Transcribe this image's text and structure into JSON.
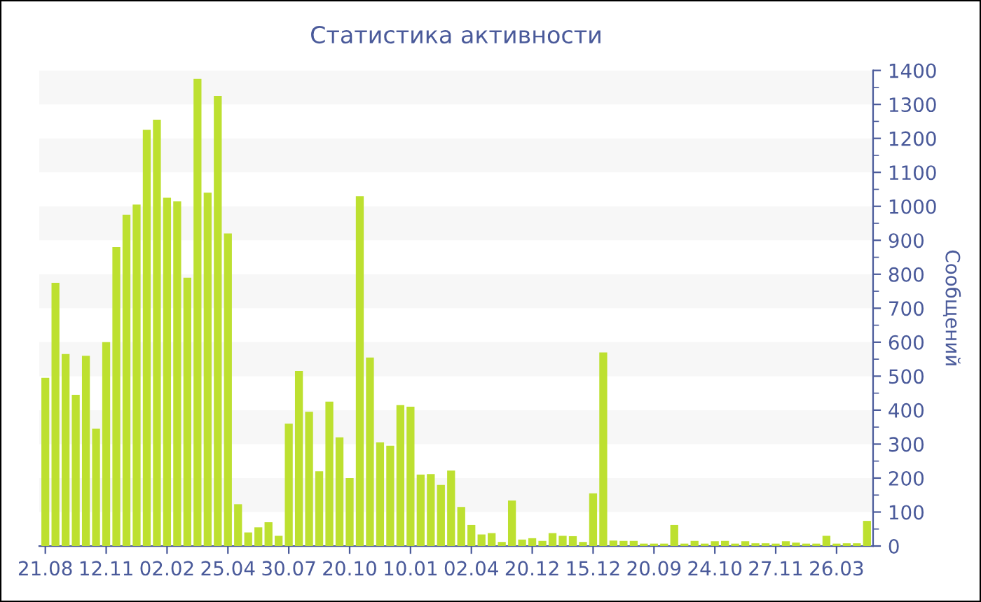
{
  "chart_data": {
    "type": "bar",
    "title": "Статистика активности",
    "ylabel": "Сообщений",
    "categories": [
      "21.08",
      null,
      null,
      null,
      null,
      null,
      "12.11",
      null,
      null,
      null,
      null,
      null,
      "02.02",
      null,
      null,
      null,
      null,
      null,
      "25.04",
      null,
      null,
      null,
      null,
      null,
      "30.07",
      null,
      null,
      null,
      null,
      null,
      "20.10",
      null,
      null,
      null,
      null,
      null,
      "10.01",
      null,
      null,
      null,
      null,
      null,
      "02.04",
      null,
      null,
      null,
      null,
      null,
      "20.12",
      null,
      null,
      null,
      null,
      null,
      "15.12",
      null,
      null,
      null,
      null,
      null,
      "20.09",
      null,
      null,
      null,
      null,
      null,
      "24.10",
      null,
      null,
      null,
      null,
      null,
      "27.11",
      null,
      null,
      null,
      null,
      null,
      "26.03",
      null,
      null,
      null
    ],
    "values": [
      495,
      775,
      565,
      445,
      560,
      345,
      600,
      880,
      975,
      1005,
      1225,
      1255,
      1025,
      1015,
      790,
      1375,
      1040,
      1325,
      920,
      123,
      40,
      55,
      70,
      30,
      360,
      515,
      395,
      220,
      425,
      320,
      200,
      1030,
      555,
      305,
      295,
      415,
      410,
      210,
      212,
      180,
      222,
      115,
      62,
      34,
      38,
      12,
      134,
      19,
      23,
      15,
      38,
      30,
      29,
      12,
      155,
      570,
      16,
      15,
      15,
      7,
      7,
      7,
      62,
      7,
      15,
      7,
      14,
      15,
      7,
      14,
      8,
      8,
      7,
      14,
      10,
      7,
      7,
      30,
      7,
      8,
      8,
      74
    ],
    "color": "#bde030",
    "ylim": [
      0,
      1400
    ],
    "yticks": [
      0,
      100,
      200,
      300,
      400,
      500,
      600,
      700,
      800,
      900,
      1000,
      1100,
      1200,
      1300,
      1400
    ],
    "grid": false
  }
}
